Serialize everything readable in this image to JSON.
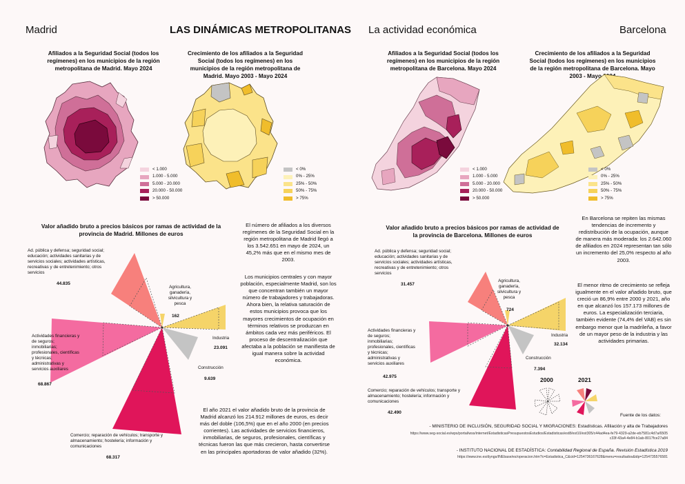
{
  "header": {
    "left": "Madrid",
    "center": "LAS DINÁMICAS METROPOLITANAS",
    "section": "La actividad económica",
    "right": "Barcelona"
  },
  "maps": {
    "madrid_affiliates_title": "Afiliados a la Seguridad Social (todos los regímenes) en los municipios de la región metropolitana de Madrid. Mayo 2024",
    "madrid_growth_title": "Crecimiento de los afiliados a la Seguridad Social (todos los regímenes) en los municipios de la región metropolitana de Madrid. Mayo 2003 - Mayo 2024",
    "barcelona_affiliates_title": "Afiliados a la Seguridad Social (todos los regímenes) en los municipios de la región metropolitana de Barcelona. Mayo 2024",
    "barcelona_growth_title": "Crecimiento de los afiliados a la Seguridad Social (todos los regímenes) en los municipios de la región metropolitana de Barcelona. Mayo 2003 - Mayo 2024",
    "affiliates_legend": [
      {
        "label": "< 1.000",
        "color": "#f4d3de"
      },
      {
        "label": "1.000 - 5.000",
        "color": "#e7a6bf"
      },
      {
        "label": "5.000 - 20.000",
        "color": "#cf6f98"
      },
      {
        "label": "20.000 - 50.000",
        "color": "#a8205a"
      },
      {
        "label": "> 50.000",
        "color": "#7a0a3c"
      }
    ],
    "growth_legend": [
      {
        "label": "< 0%",
        "color": "#c4c4c4"
      },
      {
        "label": "0% - 25%",
        "color": "#fdf1b8"
      },
      {
        "label": "25% - 50%",
        "color": "#fbe38a"
      },
      {
        "label": "50% - 75%",
        "color": "#f6d25a"
      },
      {
        "label": "> 75%",
        "color": "#f0bd2b"
      }
    ]
  },
  "madrid_chart": {
    "title": "Valor añadido bruto a precios básicos por ramas de actividad de la provincia de Madrid. Millones de euros",
    "sectors": [
      {
        "label": "Ad. pública y defensa; seguridad social; educación; actividades sanitarias y de servicios sociales; actividades artísticas, recreativas y de entretenimiento; otros servicios",
        "value": "44.835"
      },
      {
        "label": "Agricultura, ganadería, silvicultura y pesca",
        "value": "162"
      },
      {
        "label": "Industria",
        "value": "23.091"
      },
      {
        "label": "Construcción",
        "value": "9.639"
      },
      {
        "label": "Comercio; reparación de vehículos; transporte y almacenamiento; hostelería; información y comunicaciones",
        "value": "68.317"
      },
      {
        "label": "Actividades financieras y de seguros; inmobiliarias; profesionales, científicas y técnicas; administrativas y servicios auxiliares",
        "value": "68.867"
      }
    ]
  },
  "barcelona_chart": {
    "title": "Valor añadido bruto a precios básicos por ramas de actividad de la provincia de Barcelona. Millones de euros",
    "sectors": [
      {
        "label": "Ad. pública y defensa; seguridad social; educación; actividades sanitarias y de servicios sociales; actividades artísticas, recreativas y de entretenimiento; otros servicios",
        "value": "31.457"
      },
      {
        "label": "Agricultura, ganadería, silvicultura y pesca",
        "value": "724"
      },
      {
        "label": "Industria",
        "value": "32.134"
      },
      {
        "label": "Construcción",
        "value": "7.394"
      },
      {
        "label": "Comercio; reparación de vehículos; transporte y almacenamiento; hostelería; información y comunicaciones",
        "value": "42.490"
      },
      {
        "label": "Actividades financieras y de seguros; inmobiliarias; profesionales, científicas y técnicas; administrativas y servicios auxiliares",
        "value": "42.975"
      }
    ],
    "legend_2000": "2000",
    "legend_2021": "2021"
  },
  "text": {
    "madrid_p1": "El número de afiliados a los diversos regímenes de la Seguridad Social en la región metropolitana de Madrid llegó a los 3.542.651 en mayo de 2024, un 45,2% más que en el mismo mes de 2003.",
    "madrid_p2": "Los municipios centrales y con mayor población, especialmente Madrid, son los que concentran también un mayor número de trabajadores y trabajadoras. Ahora bien, la relativa saturación de estos municipios provoca que los mayores crecimientos de ocupación en términos relativos se produzcan en ámbitos cada vez más periféricos. El proceso de descentralización que afectaba a la población se manifiesta de igual manera sobre la actividad económica.",
    "madrid_p3": "El año 2021 el valor añadido bruto de la provincia de Madrid alcanzó los 214.912 millones de euros, es decir más del doble (106,5%) que en el año 2000 (en precios corrientes). Las actividades de servicios financieros, inmobiliarias, de seguros, profesionales, científicas y técnicas fueron las que más crecieron, hasta convertirse en las principales aportadoras de valor añadido (32%).",
    "barcelona_p1": "En Barcelona se repiten las mismas tendencias de incremento y redistribución de la ocupación, aunque de manera más moderada: los 2.642.060 de afiliados en 2024 representan tan sólo un incremento del 25,0% respecto al año 2003.",
    "barcelona_p2": "El menor ritmo de crecimiento se refleja igualmente en el valor añadido bruto, que creció un 86,9% entre 2000 y 2021, año en que alcanzó los 157.173 millones de euros. La especialización terciaria, también evidente (74,4% del VAB) es sin embargo menor que la madrileña, a favor de un mayor peso de la industria y las actividades primarias."
  },
  "sources": {
    "title": "Fuente de los datos:",
    "s1": "- MINISTERIO DE INCLUSIÓN, SEGURIDAD SOCIAL Y MIGRACIONES: Estadísticas. Afiliación y alta de Trabajadores",
    "s1_url": "https://www.seg-social.es/wps/portal/wss/internet/EstadisticasPresupuestosEstudios/Estadisticas/est8/est10/est305/c44ad4ea-fe79-4329-a2de-eb7581c4d7a/6505c33f-43a4-4e84-b1ab-8017fce27a84",
    "s2": "- INSTITUTO NACIONAL DE ESTADÍSTICA:",
    "s2_italic": "Contabilidad Regional de España. Revisión Estadística 2019",
    "s2_url": "https://www.ine.es/dyngs/INEbase/es/operacion.htm?c=Estadistica_C&cid=1254736167628&menu=resultados&idp=1254735576581"
  }
}
